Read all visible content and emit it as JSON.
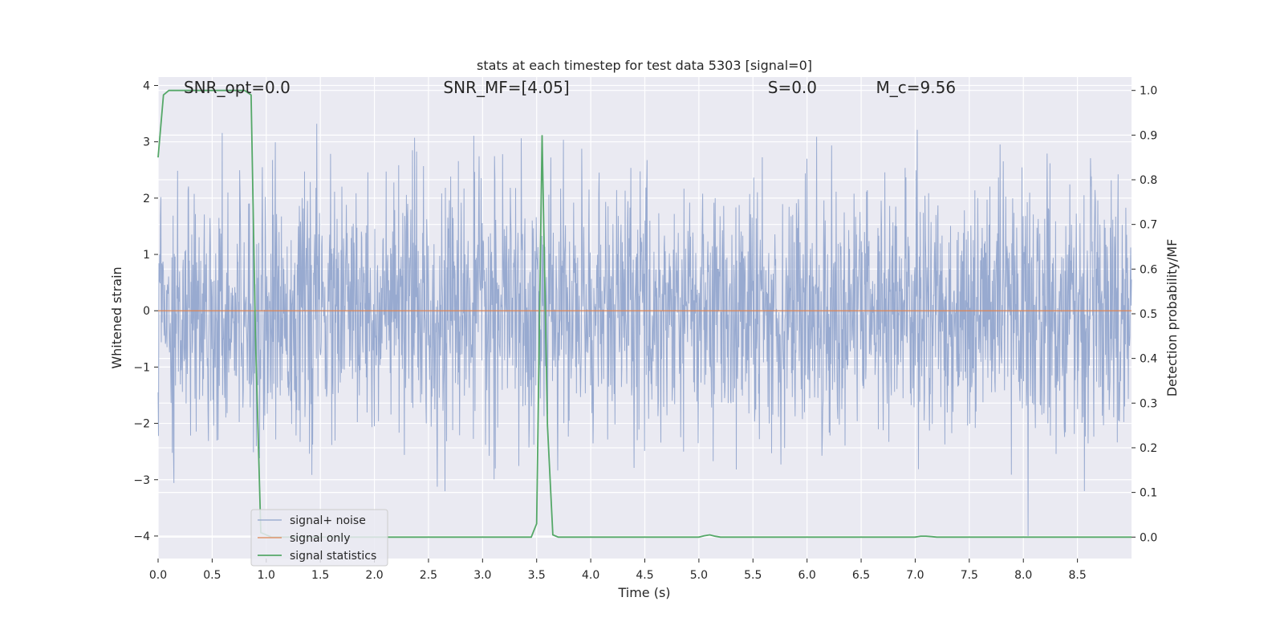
{
  "chart_data": {
    "type": "line",
    "title": "stats at each timestep for test data 5303 [signal=0]",
    "xlabel": "Time (s)",
    "ylabel_left": "Whitened strain",
    "ylabel_right": "Detection probability/MF",
    "xlim": [
      0,
      9
    ],
    "ylim_left": [
      -4.4,
      4.15
    ],
    "ylim_right": [
      -0.048,
      1.03
    ],
    "x_ticks": [
      0.0,
      0.5,
      1.0,
      1.5,
      2.0,
      2.5,
      3.0,
      3.5,
      4.0,
      4.5,
      5.0,
      5.5,
      6.0,
      6.5,
      7.0,
      7.5,
      8.0,
      8.5
    ],
    "x_tick_labels": [
      "0.0",
      "0.5",
      "1.0",
      "1.5",
      "2.0",
      "2.5",
      "3.0",
      "3.5",
      "4.0",
      "4.5",
      "5.0",
      "5.5",
      "6.0",
      "6.5",
      "7.0",
      "7.5",
      "8.0",
      "8.5"
    ],
    "y_left_ticks": [
      4,
      3,
      2,
      1,
      0,
      -1,
      -2,
      -3,
      -4
    ],
    "y_left_tick_labels": [
      "4",
      "3",
      "2",
      "1",
      "0",
      "−1",
      "−2",
      "−3",
      "−4"
    ],
    "y_right_ticks": [
      1.0,
      0.9,
      0.8,
      0.7,
      0.6,
      0.5,
      0.4,
      0.3,
      0.2,
      0.1,
      0.0
    ],
    "y_right_tick_labels": [
      "1.0",
      "0.9",
      "0.8",
      "0.7",
      "0.6",
      "0.5",
      "0.4",
      "0.3",
      "0.2",
      "0.1",
      "0.0"
    ],
    "grid": true,
    "legend_position": "lower-left",
    "annotations": [
      {
        "text": "SNR_opt=0.0",
        "x": 0.2,
        "y": 3.95
      },
      {
        "text": "SNR_MF=[4.05]",
        "x": 2.6,
        "y": 3.95
      },
      {
        "text": "S=0.0",
        "x": 5.6,
        "y": 3.95
      },
      {
        "text": "M_c=9.56",
        "x": 6.6,
        "y": 3.95
      }
    ],
    "series": [
      {
        "name": "signal+ noise",
        "axis": "left",
        "color": "#8fa3cc",
        "style": "noise",
        "amplitude_envelope": [
          -4.0,
          3.7
        ]
      },
      {
        "name": "signal only",
        "axis": "left",
        "color": "#dd8452",
        "x": [
          0,
          9
        ],
        "y": [
          0,
          0
        ]
      },
      {
        "name": "signal statistics",
        "axis": "right",
        "color": "#55a868",
        "x": [
          0.0,
          0.05,
          0.1,
          0.2,
          0.3,
          0.4,
          0.5,
          0.6,
          0.7,
          0.8,
          0.86,
          0.9,
          0.95,
          1.05,
          1.5,
          2.0,
          2.5,
          3.0,
          3.45,
          3.5,
          3.55,
          3.6,
          3.65,
          3.7,
          4.0,
          4.5,
          5.0,
          5.05,
          5.1,
          5.15,
          5.2,
          6.0,
          7.0,
          7.05,
          7.1,
          7.15,
          7.2,
          8.0,
          9.0
        ],
        "y": [
          0.85,
          0.99,
          1.0,
          1.0,
          1.0,
          1.0,
          1.0,
          1.0,
          1.0,
          1.0,
          0.99,
          0.45,
          0.01,
          0.0,
          0.0,
          0.0,
          0.0,
          0.0,
          0.0,
          0.03,
          0.9,
          0.25,
          0.005,
          0.0,
          0.0,
          0.0,
          0.0,
          0.003,
          0.005,
          0.002,
          0.0,
          0.0,
          0.0,
          0.002,
          0.002,
          0.001,
          0.0,
          0.0,
          0.0
        ]
      }
    ]
  }
}
